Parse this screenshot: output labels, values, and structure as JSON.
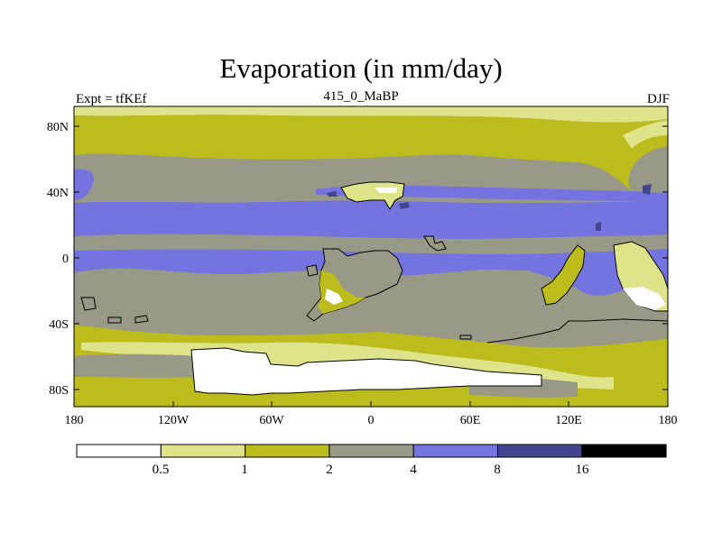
{
  "header": {
    "title": "Evaporation (in mm/day)",
    "left_label": "Expt = tfKEf",
    "center_label": "415_0_MaBP",
    "right_label": "DJF"
  },
  "map": {
    "lat_ticks": [
      "80N",
      "40N",
      "0",
      "40S",
      "80S"
    ],
    "lon_ticks": [
      "180",
      "120W",
      "60W",
      "0",
      "60E",
      "120E",
      "180"
    ]
  },
  "colorbar": {
    "labels": [
      "0.5",
      "1",
      "2",
      "4",
      "8",
      "16"
    ],
    "colors": [
      "#ffffff",
      "#dfe38a",
      "#bcbc1c",
      "#999988",
      "#7474e0",
      "#45458f",
      "#000000"
    ]
  }
}
